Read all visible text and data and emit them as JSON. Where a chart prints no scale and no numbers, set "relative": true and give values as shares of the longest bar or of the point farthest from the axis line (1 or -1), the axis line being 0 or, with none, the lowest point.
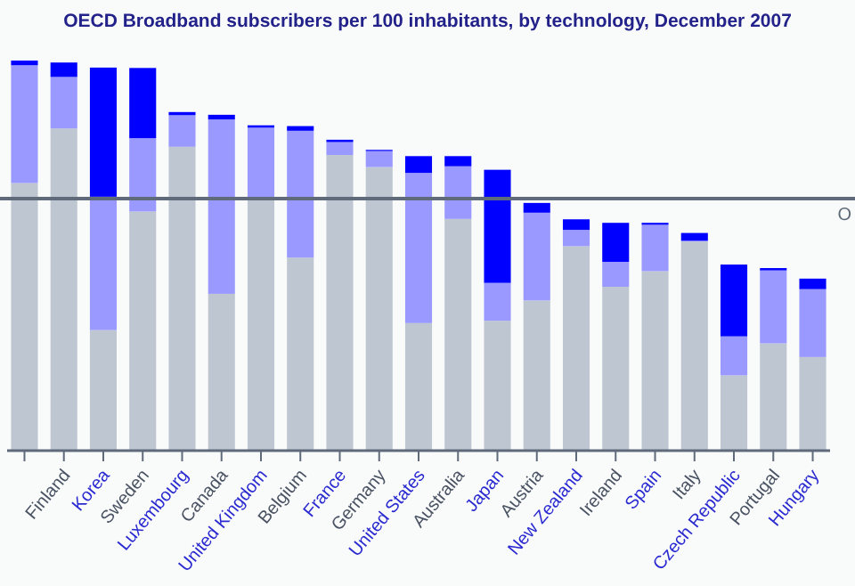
{
  "chart_data": {
    "type": "bar",
    "title": "OECD Broadband subscribers per 100 inhabitants, by technology, December 2007",
    "categories": [
      null,
      "Finland",
      "Korea",
      "Sweden",
      "Luxembourg",
      "Canada",
      "United Kingdom",
      "Belgium",
      "France",
      "Germany",
      "United States",
      "Australia",
      "Japan",
      "Austria",
      "New Zealand",
      "Ireland",
      "Spain",
      "Italy",
      "Czech Republic",
      "Portugal",
      "Hungary"
    ],
    "stacked": true,
    "relative": true,
    "series": [
      {
        "color": "#bec6d2",
        "values": [
          0.686,
          0.826,
          0.309,
          0.613,
          0.779,
          0.402,
          0.646,
          0.495,
          0.758,
          0.727,
          0.327,
          0.594,
          0.333,
          0.385,
          0.524,
          0.42,
          0.46,
          0.536,
          0.193,
          0.275,
          0.24
        ]
      },
      {
        "color": "#9999ff",
        "values": [
          0.302,
          0.132,
          0.342,
          0.188,
          0.081,
          0.447,
          0.182,
          0.325,
          0.033,
          0.041,
          0.385,
          0.135,
          0.097,
          0.225,
          0.042,
          0.064,
          0.119,
          0.002,
          0.1,
          0.187,
          0.174
        ]
      },
      {
        "color": "#0000ff",
        "values": [
          0.012,
          0.037,
          0.331,
          0.18,
          0.008,
          0.012,
          0.006,
          0.012,
          0.006,
          0.003,
          0.043,
          0.026,
          0.29,
          0.025,
          0.027,
          0.1,
          0.005,
          0.02,
          0.184,
          0.006,
          0.027
        ]
      }
    ],
    "ref_lines": [
      {
        "axis": "y",
        "value": 0.646,
        "label": "O",
        "color": "#5f6b7a"
      }
    ]
  }
}
